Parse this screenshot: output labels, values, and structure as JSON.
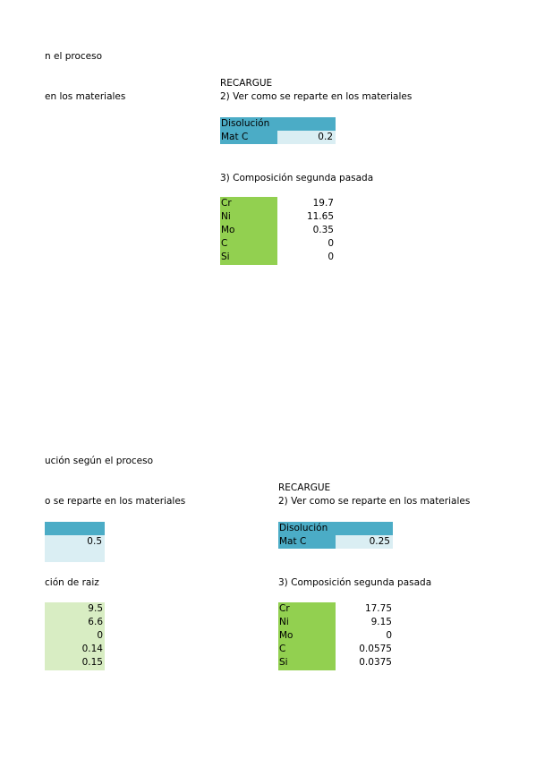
{
  "top": {
    "left_header": "n el proceso",
    "left_sub": "en los materiales",
    "recargue": "RECARGUE",
    "step2": "2) Ver como se reparte en los materiales",
    "disolucion_label": "Disolución",
    "matc_label": "Mat C",
    "matc_value": "0.2",
    "step3": "3) Composición segunda pasada",
    "elements": [
      {
        "name": "Cr",
        "value": "19.7"
      },
      {
        "name": "Ni",
        "value": "11.65"
      },
      {
        "name": "Mo",
        "value": "0.35"
      },
      {
        "name": "C",
        "value": "0"
      },
      {
        "name": "Si",
        "value": "0"
      }
    ]
  },
  "bottom": {
    "left_header": "ución según el proceso",
    "left_sub": "o se reparte en los materiales",
    "left_matc_value": "0.5",
    "left_step3": "ción de raiz",
    "left_values": [
      "9.5",
      "6.6",
      "0",
      "0.14",
      "0.15"
    ],
    "recargue": "RECARGUE",
    "step2": "2) Ver como se reparte en los materiales",
    "disolucion_label": "Disolución",
    "matc_label": "Mat C",
    "matc_value": "0.25",
    "step3": "3) Composición segunda pasada",
    "elements": [
      {
        "name": "Cr",
        "value": "17.75"
      },
      {
        "name": "Ni",
        "value": "9.15"
      },
      {
        "name": "Mo",
        "value": "0"
      },
      {
        "name": "C",
        "value": "0.0575"
      },
      {
        "name": "Si",
        "value": "0.0375"
      }
    ]
  }
}
